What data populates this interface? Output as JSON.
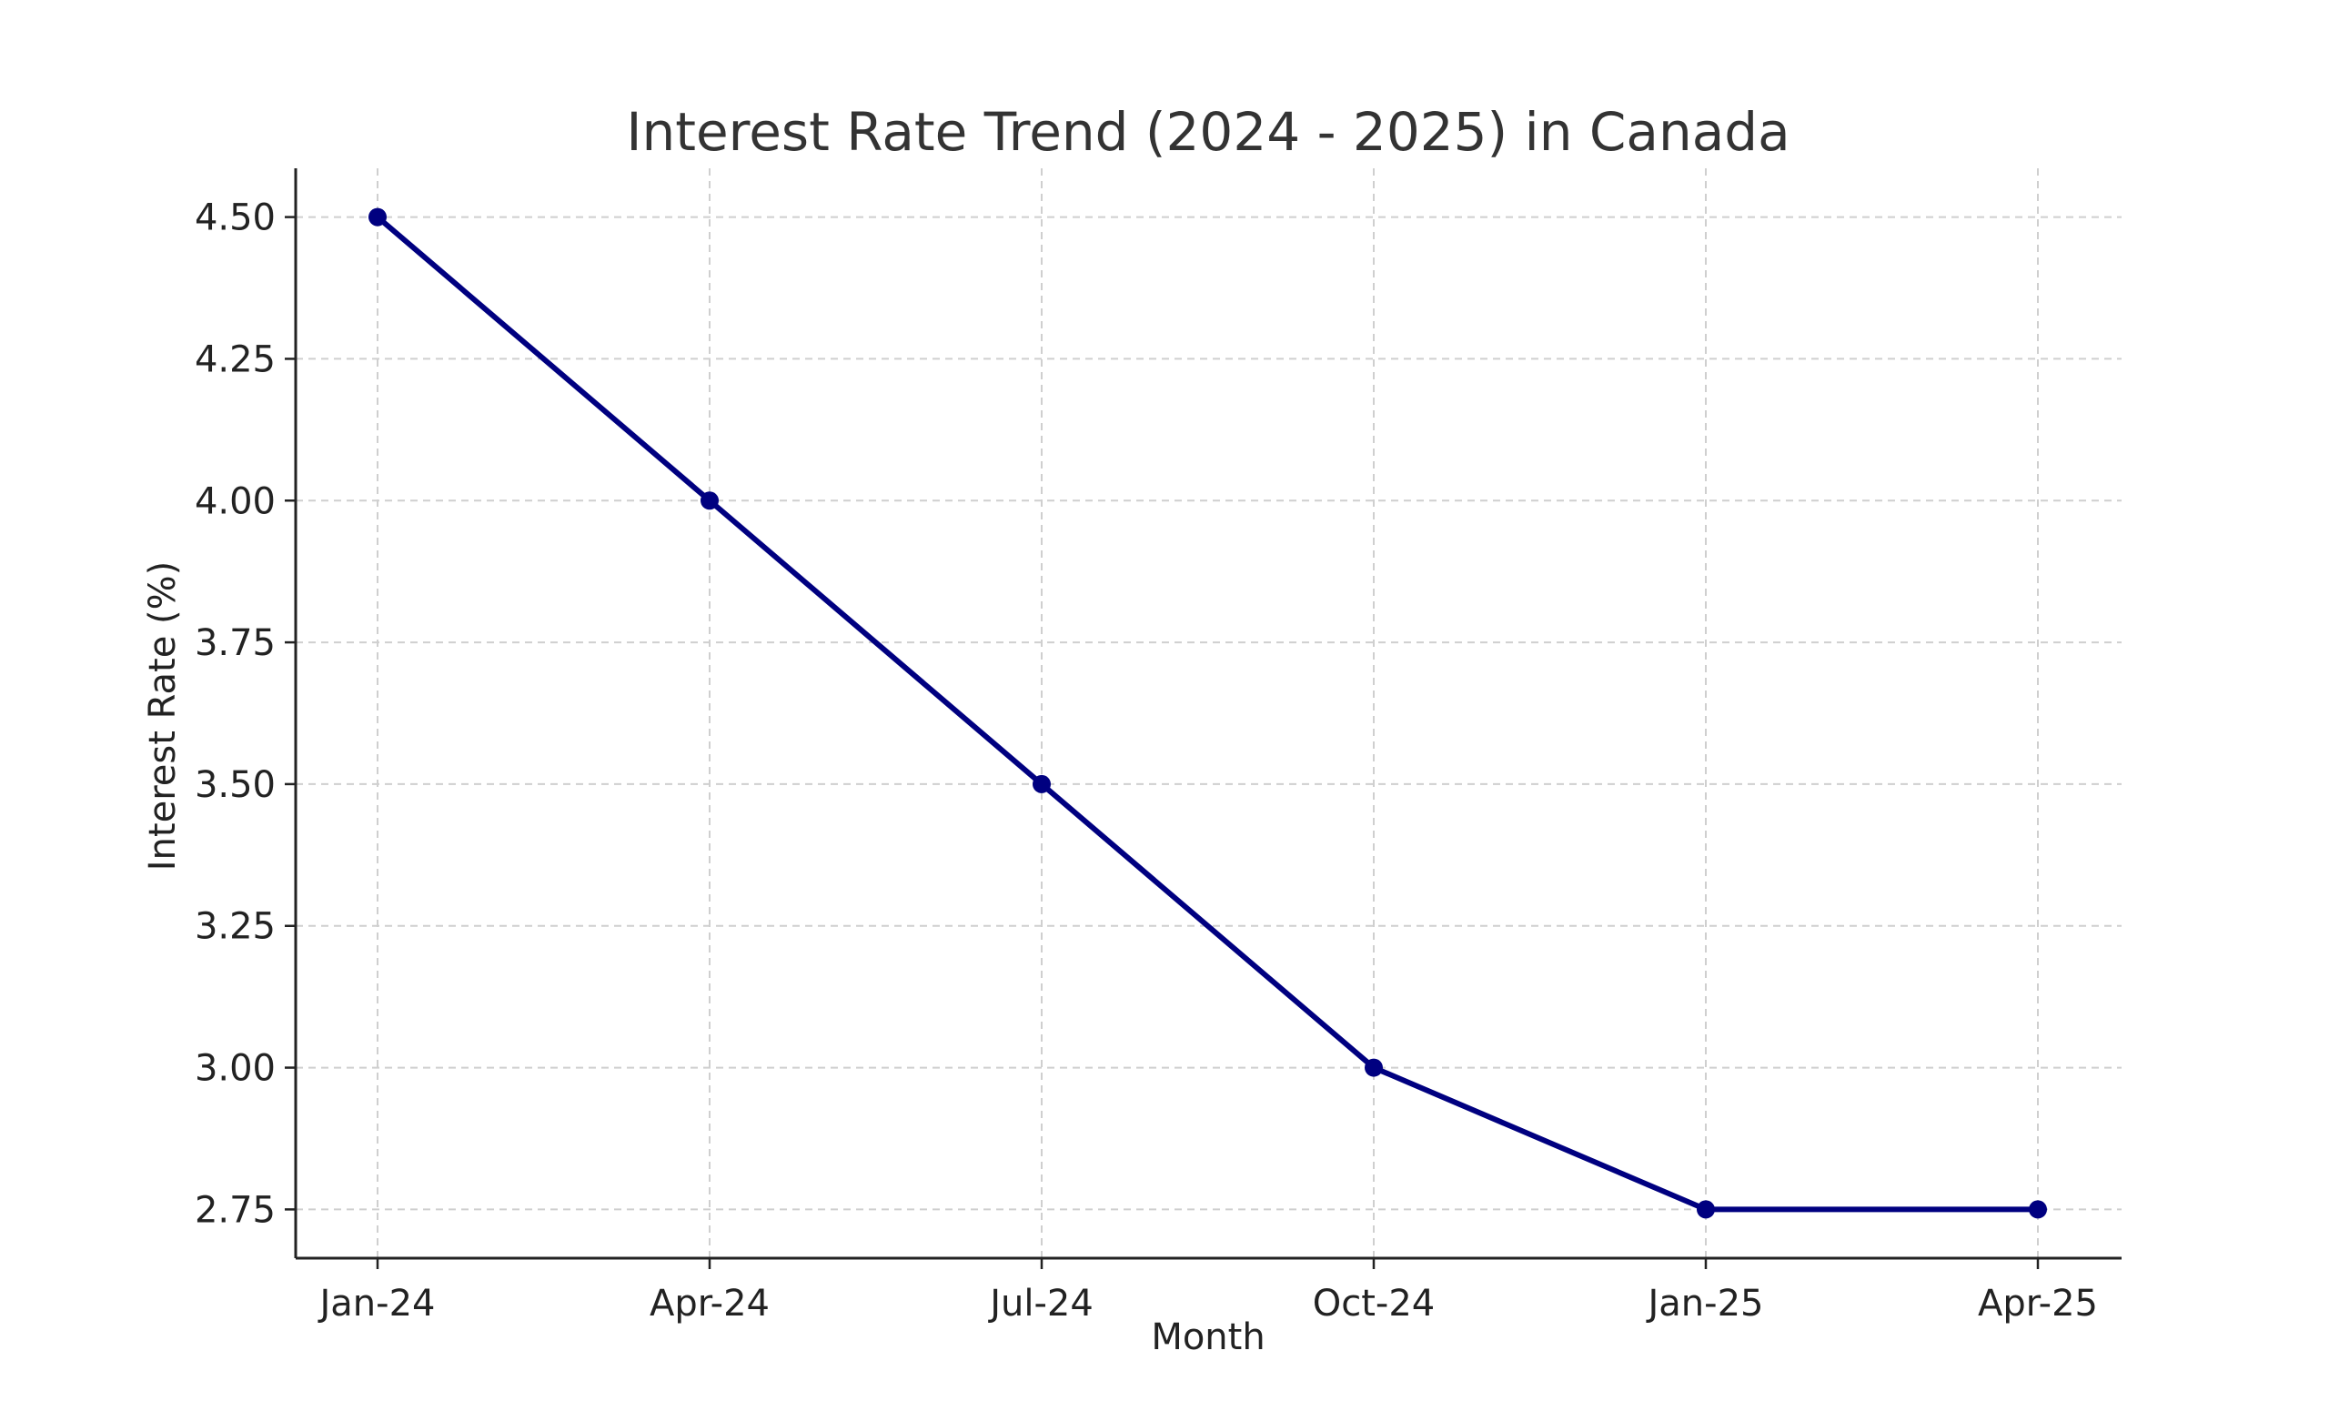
{
  "chart_data": {
    "type": "line",
    "title": "Interest Rate Trend (2024 - 2025) in Canada",
    "xlabel": "Month",
    "ylabel": "Interest Rate (%)",
    "categories": [
      "Jan-24",
      "Apr-24",
      "Jul-24",
      "Oct-24",
      "Jan-25",
      "Apr-25"
    ],
    "series": [
      {
        "values": [
          4.5,
          4.0,
          3.5,
          3.0,
          2.75,
          2.75
        ],
        "color": "#000080",
        "marker": "circle"
      }
    ],
    "yticks": [
      "2.75",
      "3.00",
      "3.25",
      "3.50",
      "3.75",
      "4.00",
      "4.25",
      "4.50"
    ],
    "ylim": [
      2.664,
      4.586
    ],
    "grid": true,
    "legend": "none"
  }
}
